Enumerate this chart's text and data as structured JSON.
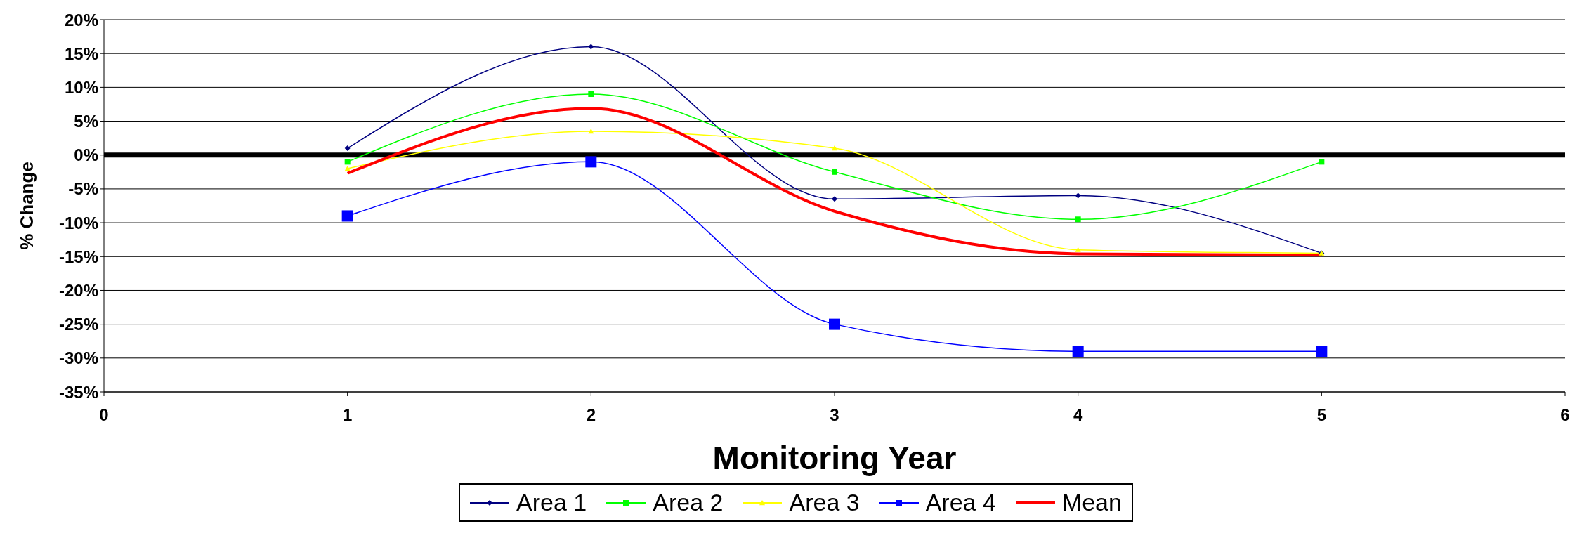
{
  "chart_data": {
    "type": "line",
    "xlabel": "Monitoring Year",
    "ylabel": "% Change",
    "x": [
      1,
      2,
      3,
      4,
      5
    ],
    "series": [
      {
        "name": "Area 1",
        "color": "#000080",
        "marker": "diamond",
        "values": [
          1,
          16,
          -6.5,
          -6,
          -14.5
        ]
      },
      {
        "name": "Area 2",
        "color": "#00ff00",
        "marker": "square",
        "values": [
          -1,
          9,
          -2.5,
          -9.5,
          -1
        ]
      },
      {
        "name": "Area 3",
        "color": "#ffff00",
        "marker": "triangle",
        "values": [
          -2,
          3.5,
          1,
          -14,
          -14.5
        ]
      },
      {
        "name": "Area 4",
        "color": "#0000ff",
        "marker": "square",
        "values": [
          -9,
          -1,
          -25,
          -29,
          -29
        ]
      },
      {
        "name": "Mean",
        "color": "#ff0000",
        "marker": "none",
        "values": [
          -2.7,
          6.9,
          -8.3,
          -14.6,
          -14.8
        ]
      }
    ],
    "xlim": [
      0,
      6
    ],
    "xticks": [
      0,
      1,
      2,
      3,
      4,
      5,
      6
    ],
    "ylim": [
      -35,
      20
    ],
    "yticks": [
      {
        "value": -35,
        "label": "-35%"
      },
      {
        "value": -30,
        "label": "-30%"
      },
      {
        "value": -25,
        "label": "-25%"
      },
      {
        "value": -20,
        "label": "-20%"
      },
      {
        "value": -15,
        "label": "-15%"
      },
      {
        "value": -10,
        "label": "-10%"
      },
      {
        "value": -5,
        "label": "-5%"
      },
      {
        "value": 0,
        "label": "0%"
      },
      {
        "value": 5,
        "label": "5%"
      },
      {
        "value": 10,
        "label": "10%"
      },
      {
        "value": 15,
        "label": "15%"
      },
      {
        "value": 20,
        "label": "20%"
      }
    ],
    "ref_lines": [
      {
        "axis": "y",
        "value": 0,
        "color": "#000000"
      }
    ],
    "grid": "y",
    "legend": "bottom"
  }
}
